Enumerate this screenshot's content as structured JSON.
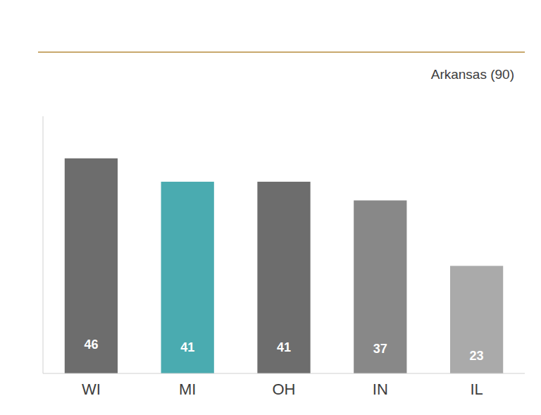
{
  "chart_data": {
    "type": "bar",
    "categories": [
      "WI",
      "MI",
      "OH",
      "IN",
      "IL"
    ],
    "values": [
      46,
      41,
      41,
      37,
      23
    ],
    "colors": [
      "#6d6d6d",
      "#4aabb0",
      "#6d6d6d",
      "#888888",
      "#aaaaaa"
    ],
    "ylim": [
      0,
      55
    ],
    "data_labels": true,
    "tick_labels": "x",
    "grid": false,
    "annotation": "Arkansas (90)"
  }
}
